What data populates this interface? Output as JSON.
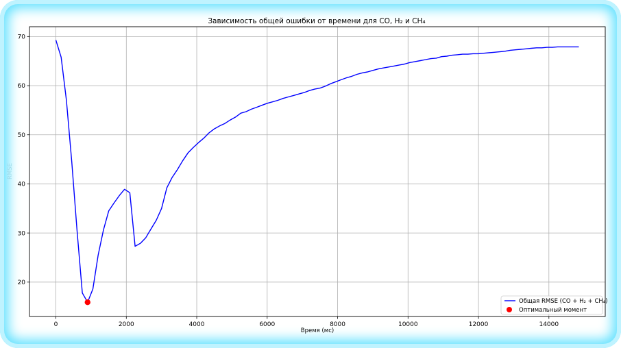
{
  "chart_data": {
    "type": "line",
    "title": "Зависимость общей ошибки от времени для CO, H₂ и CH₄",
    "xlabel": "Время (мс)",
    "ylabel": "RMSE",
    "xlim": [
      -750,
      15600
    ],
    "ylim": [
      13,
      72
    ],
    "xticks": [
      0,
      2000,
      4000,
      6000,
      8000,
      10000,
      12000,
      14000
    ],
    "yticks": [
      20,
      30,
      40,
      50,
      60,
      70
    ],
    "grid": true,
    "legend_position": "bottom-right",
    "series": [
      {
        "name": "Общая RMSE (CO + H₂ + CH₄)",
        "color": "#0000ff",
        "x": [
          0,
          150,
          300,
          450,
          600,
          750,
          900,
          1050,
          1200,
          1350,
          1500,
          1650,
          1800,
          1950,
          2100,
          2250,
          2400,
          2550,
          2700,
          2850,
          3000,
          3150,
          3300,
          3450,
          3600,
          3750,
          3900,
          4050,
          4200,
          4350,
          4500,
          4650,
          4800,
          4950,
          5100,
          5250,
          5400,
          5550,
          5700,
          5850,
          6000,
          6150,
          6300,
          6450,
          6600,
          6750,
          6900,
          7050,
          7200,
          7350,
          7500,
          7650,
          7800,
          7950,
          8100,
          8250,
          8400,
          8550,
          8700,
          8850,
          9000,
          9150,
          9300,
          9450,
          9600,
          9750,
          9900,
          10050,
          10200,
          10350,
          10500,
          10650,
          10800,
          10950,
          11100,
          11250,
          11400,
          11550,
          11700,
          11850,
          12000,
          12150,
          12300,
          12450,
          12600,
          12750,
          12900,
          13050,
          13200,
          13350,
          13500,
          13650,
          13800,
          13950,
          14100,
          14250,
          14400,
          14550,
          14700,
          14850
        ],
        "y": [
          69.3,
          65.8,
          57.0,
          44.5,
          30.5,
          17.8,
          15.9,
          18.6,
          25.5,
          30.6,
          34.5,
          36.1,
          37.6,
          38.9,
          38.2,
          27.3,
          27.9,
          29.0,
          30.8,
          32.6,
          35.0,
          39.2,
          41.3,
          42.9,
          44.7,
          46.3,
          47.4,
          48.4,
          49.3,
          50.4,
          51.2,
          51.8,
          52.3,
          53.0,
          53.6,
          54.4,
          54.7,
          55.2,
          55.6,
          56.0,
          56.4,
          56.7,
          57.0,
          57.4,
          57.7,
          58.0,
          58.3,
          58.6,
          59.0,
          59.3,
          59.5,
          59.9,
          60.4,
          60.8,
          61.2,
          61.6,
          61.9,
          62.3,
          62.6,
          62.8,
          63.1,
          63.4,
          63.6,
          63.8,
          64.0,
          64.2,
          64.4,
          64.7,
          64.9,
          65.1,
          65.3,
          65.5,
          65.6,
          65.9,
          66.0,
          66.2,
          66.3,
          66.4,
          66.4,
          66.5,
          66.5,
          66.6,
          66.7,
          66.8,
          66.9,
          67.0,
          67.2,
          67.3,
          67.4,
          67.5,
          67.6,
          67.7,
          67.7,
          67.8,
          67.8,
          67.9,
          67.9,
          67.9,
          67.9,
          67.9
        ]
      },
      {
        "name": "Оптимальный момент",
        "type": "scatter",
        "color": "#ff0000",
        "x": [
          900
        ],
        "y": [
          15.9
        ]
      }
    ]
  }
}
